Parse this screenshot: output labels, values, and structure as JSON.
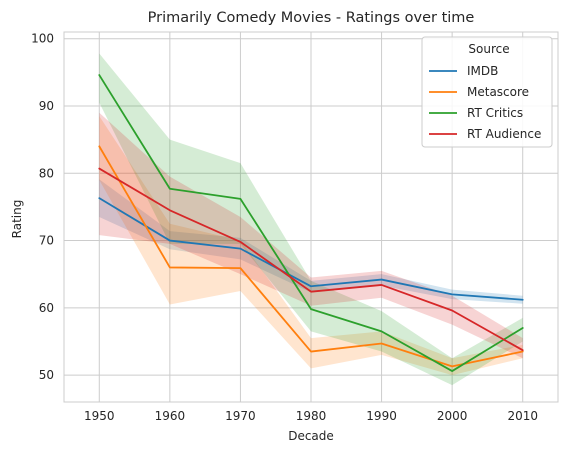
{
  "chart_data": {
    "type": "line",
    "title": "Primarily Comedy Movies - Ratings over time",
    "xlabel": "Decade",
    "ylabel": "Rating",
    "x": [
      1950,
      1960,
      1970,
      1980,
      1990,
      2000,
      2010
    ],
    "xlim": [
      1945,
      2015
    ],
    "ylim": [
      46,
      101
    ],
    "yticks": [
      50,
      60,
      70,
      80,
      90,
      100
    ],
    "grid": true,
    "legend": {
      "title": "Source",
      "placement": "top-right"
    },
    "series": [
      {
        "name": "IMDB",
        "color": "#1f77b4",
        "values": [
          76.3,
          70.0,
          68.8,
          63.2,
          64.2,
          62.0,
          61.2
        ],
        "lower": [
          73.5,
          68.7,
          67.2,
          62.3,
          63.3,
          61.3,
          60.6
        ],
        "upper": [
          79.1,
          71.4,
          70.4,
          64.0,
          65.0,
          62.7,
          61.8
        ]
      },
      {
        "name": "Metascore",
        "color": "#ff7f0e",
        "values": [
          84.0,
          66.0,
          65.9,
          53.5,
          54.7,
          51.3,
          53.5
        ],
        "lower": [
          79.0,
          60.5,
          62.5,
          51.0,
          53.0,
          50.0,
          52.5
        ],
        "upper": [
          88.5,
          72.5,
          70.0,
          55.5,
          56.5,
          52.5,
          54.5
        ]
      },
      {
        "name": "RT Critics",
        "color": "#2ca02c",
        "values": [
          94.6,
          77.7,
          76.2,
          59.8,
          56.5,
          50.6,
          57.0
        ],
        "lower": [
          90.5,
          69.5,
          69.5,
          56.5,
          53.5,
          48.5,
          55.0
        ],
        "upper": [
          97.8,
          85.0,
          81.5,
          64.0,
          59.5,
          52.5,
          58.5
        ]
      },
      {
        "name": "RT Audience",
        "color": "#d62728",
        "values": [
          80.7,
          74.5,
          69.8,
          62.4,
          63.4,
          59.6,
          53.7
        ],
        "lower": [
          70.8,
          69.5,
          65.0,
          60.3,
          61.5,
          57.5,
          52.5
        ],
        "upper": [
          89.0,
          79.5,
          73.5,
          64.5,
          65.5,
          61.8,
          55.5
        ]
      }
    ]
  }
}
